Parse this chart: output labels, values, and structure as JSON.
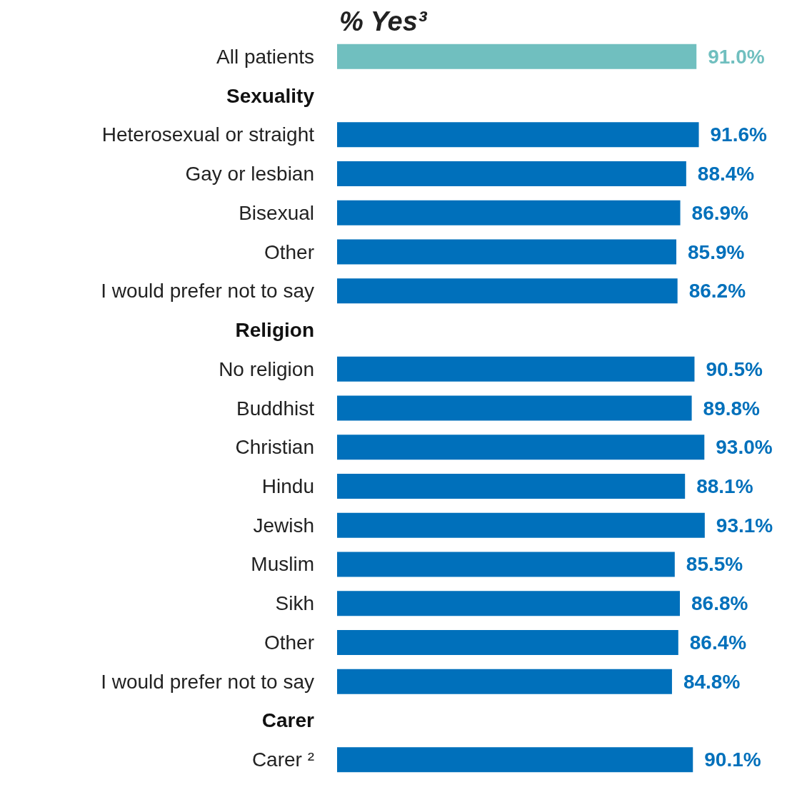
{
  "chart_data": {
    "type": "bar",
    "orientation": "horizontal",
    "title": "% Yes³",
    "categories": [
      "All patients",
      "Sexuality",
      "Heterosexual or straight",
      "Gay or lesbian",
      "Bisexual",
      "Other",
      "I would prefer not to say",
      "Religion",
      "No religion",
      "Buddhist",
      "Christian",
      "Hindu",
      "Jewish",
      "Muslim",
      "Sikh",
      "Other",
      "I would prefer not to say",
      "Carer",
      "Carer ²"
    ],
    "values": [
      91.0,
      null,
      91.6,
      88.4,
      86.9,
      85.9,
      86.2,
      null,
      90.5,
      89.8,
      93.0,
      88.1,
      93.1,
      85.5,
      86.8,
      86.4,
      84.8,
      null,
      90.1
    ],
    "value_labels": [
      "91.0%",
      null,
      "91.6%",
      "88.4%",
      "86.9%",
      "85.9%",
      "86.2%",
      null,
      "90.5%",
      "89.8%",
      "93.0%",
      "88.1%",
      "93.1%",
      "85.5%",
      "86.8%",
      "86.4%",
      "84.8%",
      null,
      "90.1%"
    ],
    "colors": [
      "#70bfbf",
      null,
      "#0070bb",
      "#0070bb",
      "#0070bb",
      "#0070bb",
      "#0070bb",
      null,
      "#0070bb",
      "#0070bb",
      "#0070bb",
      "#0070bb",
      "#0070bb",
      "#0070bb",
      "#0070bb",
      "#0070bb",
      "#0070bb",
      null,
      "#0070bb"
    ],
    "grid": false
  }
}
